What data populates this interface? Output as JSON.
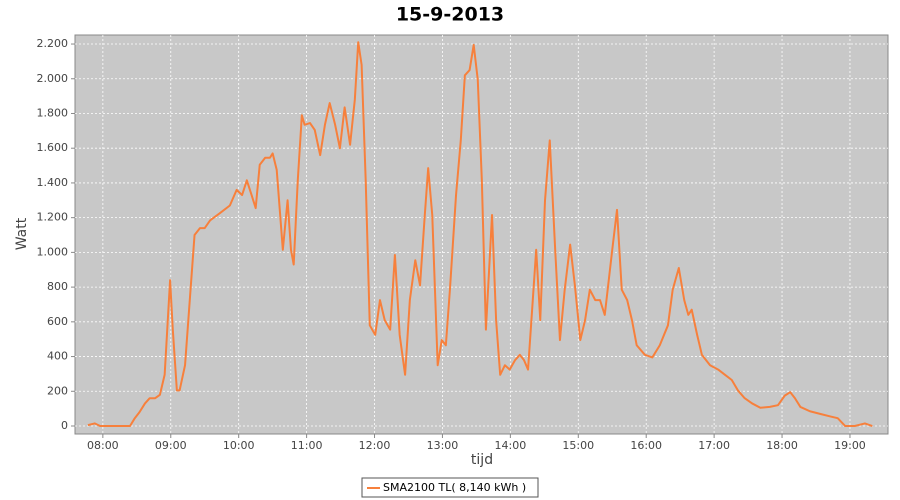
{
  "chart_data": {
    "type": "line",
    "title": "15-9-2013",
    "x_label": "tijd",
    "y_label": "Watt",
    "x": [
      7.78,
      7.88,
      7.96,
      8.4,
      8.47,
      8.54,
      8.62,
      8.69,
      8.77,
      8.84,
      8.91,
      8.99,
      9.03,
      9.09,
      9.13,
      9.21,
      9.28,
      9.35,
      9.43,
      9.5,
      9.58,
      9.72,
      9.87,
      9.97,
      10.05,
      10.12,
      10.19,
      10.25,
      10.31,
      10.39,
      10.46,
      10.5,
      10.56,
      10.65,
      10.72,
      10.77,
      10.81,
      10.87,
      10.93,
      10.97,
      11.05,
      11.12,
      11.2,
      11.27,
      11.34,
      11.42,
      11.49,
      11.56,
      11.64,
      11.71,
      11.76,
      11.81,
      11.87,
      11.93,
      12.01,
      12.08,
      12.15,
      12.23,
      12.3,
      12.37,
      12.45,
      12.52,
      12.6,
      12.67,
      12.74,
      12.79,
      12.85,
      12.93,
      12.99,
      13.05,
      13.11,
      13.2,
      13.27,
      13.33,
      13.4,
      13.46,
      13.52,
      13.58,
      13.64,
      13.73,
      13.79,
      13.85,
      13.92,
      13.99,
      14.07,
      14.14,
      14.2,
      14.26,
      14.33,
      14.38,
      14.44,
      14.51,
      14.58,
      14.66,
      14.73,
      14.8,
      14.88,
      14.95,
      15.03,
      15.1,
      15.17,
      15.25,
      15.32,
      15.39,
      15.5,
      15.57,
      15.64,
      15.72,
      15.79,
      15.86,
      15.98,
      16.09,
      16.2,
      16.32,
      16.39,
      16.48,
      16.56,
      16.62,
      16.67,
      16.75,
      16.82,
      16.94,
      17.06,
      17.16,
      17.26,
      17.35,
      17.45,
      17.56,
      17.68,
      17.82,
      17.94,
      18.04,
      18.12,
      18.19,
      18.27,
      18.41,
      18.56,
      18.71,
      18.82,
      18.93,
      19.07,
      19.22,
      19.33
    ],
    "series": [
      {
        "name": "SMA2100 TL( 8,140 kWh )",
        "color": "#f7803c",
        "values": [
          5,
          15,
          0,
          0,
          45,
          80,
          130,
          160,
          160,
          180,
          295,
          840,
          555,
          205,
          205,
          350,
          725,
          1100,
          1140,
          1140,
          1185,
          1225,
          1270,
          1360,
          1330,
          1415,
          1330,
          1255,
          1505,
          1545,
          1545,
          1570,
          1475,
          1015,
          1300,
          1015,
          930,
          1415,
          1790,
          1735,
          1745,
          1705,
          1560,
          1735,
          1860,
          1735,
          1600,
          1835,
          1620,
          1880,
          2210,
          2080,
          1415,
          580,
          525,
          725,
          610,
          555,
          985,
          525,
          295,
          725,
          955,
          810,
          1215,
          1485,
          1215,
          350,
          495,
          465,
          785,
          1330,
          1645,
          2020,
          2050,
          2195,
          1995,
          1415,
          555,
          1215,
          610,
          295,
          350,
          325,
          380,
          410,
          380,
          325,
          725,
          1015,
          610,
          1300,
          1645,
          1015,
          495,
          785,
          1045,
          810,
          495,
          610,
          785,
          725,
          725,
          640,
          1015,
          1245,
          785,
          725,
          610,
          465,
          410,
          395,
          465,
          580,
          785,
          910,
          725,
          640,
          670,
          525,
          410,
          350,
          325,
          295,
          265,
          205,
          160,
          130,
          105,
          110,
          120,
          175,
          195,
          160,
          110,
          85,
          70,
          55,
          45,
          0,
          0,
          15,
          0
        ]
      }
    ],
    "xlim": [
      7.59,
      19.56
    ],
    "xticks": [
      {
        "value": 8,
        "label": "08:00"
      },
      {
        "value": 9,
        "label": "09:00"
      },
      {
        "value": 10,
        "label": "10:00"
      },
      {
        "value": 11,
        "label": "11:00"
      },
      {
        "value": 12,
        "label": "12:00"
      },
      {
        "value": 13,
        "label": "13:00"
      },
      {
        "value": 14,
        "label": "14:00"
      },
      {
        "value": 15,
        "label": "15:00"
      },
      {
        "value": 16,
        "label": "16:00"
      },
      {
        "value": 17,
        "label": "17:00"
      },
      {
        "value": 18,
        "label": "18:00"
      },
      {
        "value": 19,
        "label": "19:00"
      }
    ],
    "ylim": [
      -46,
      2252
    ],
    "yticks": [
      0,
      200,
      400,
      600,
      800,
      {
        "value": 1000,
        "label": "1.000"
      },
      {
        "value": 1200,
        "label": "1.200"
      },
      {
        "value": 1400,
        "label": "1.400"
      },
      {
        "value": 1600,
        "label": "1.600"
      },
      {
        "value": 1800,
        "label": "1.800"
      },
      {
        "value": 2000,
        "label": "2.000"
      },
      {
        "value": 2200,
        "label": "2.200"
      }
    ],
    "grid": true,
    "legend": "bottom"
  }
}
